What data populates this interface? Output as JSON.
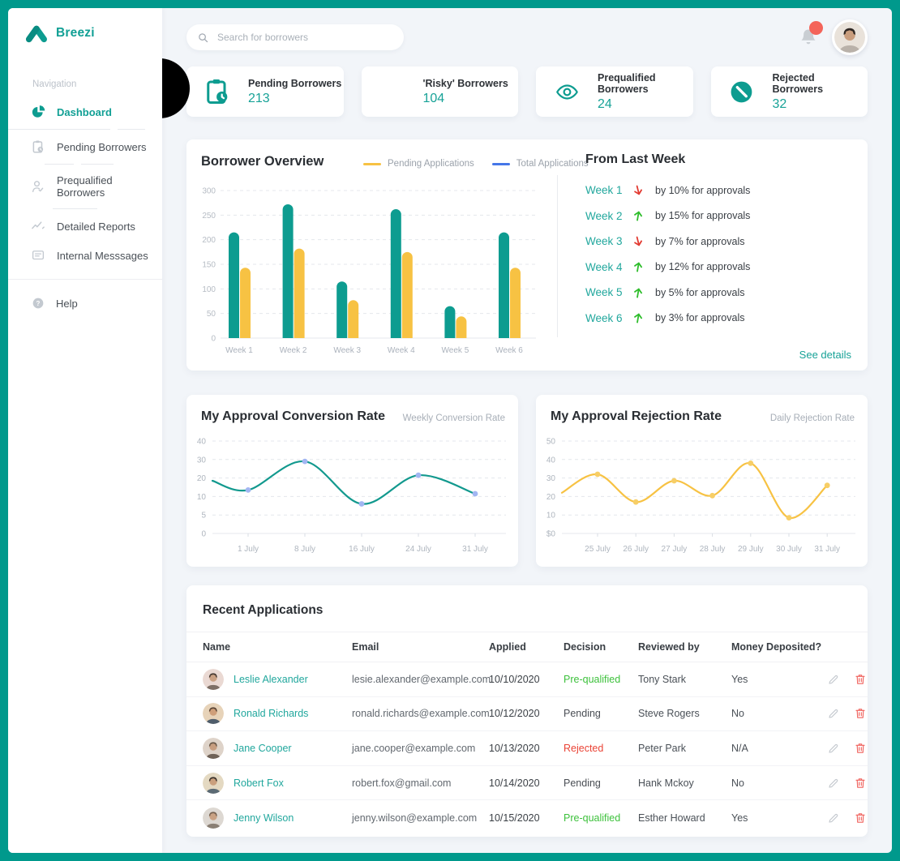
{
  "brand": {
    "name": "Breezi"
  },
  "sidebar": {
    "section_label": "Navigation",
    "items": [
      {
        "label": "Dashboard",
        "icon": "pie-chart-icon",
        "active": true
      },
      {
        "label": "Pending Borrowers",
        "icon": "clipboard-clock-icon",
        "active": false
      },
      {
        "label": "Prequalified Borrowers",
        "icon": "user-check-icon",
        "active": false
      },
      {
        "label": "Detailed Reports",
        "icon": "trend-line-icon",
        "active": false
      },
      {
        "label": "Internal Messsages",
        "icon": "message-icon",
        "active": false
      }
    ],
    "footer_items": [
      {
        "label": "Help",
        "icon": "help-icon",
        "active": false
      }
    ]
  },
  "topbar": {
    "search_placeholder": "Search for borrowers",
    "has_notification": true
  },
  "stats": [
    {
      "label": "Pending Borrowers",
      "value": "213",
      "icon": "clipboard-clock-icon"
    },
    {
      "label": "'Risky' Borrowers",
      "value": "104",
      "icon": ""
    },
    {
      "label": "Prequalified Borrowers",
      "value": "24",
      "icon": "eye-icon"
    },
    {
      "label": "Rejected Borrowers",
      "value": "32",
      "icon": "block-icon"
    }
  ],
  "overview": {
    "title": "Borrower Overview"
  },
  "from_last_week": {
    "title": "From Last Week",
    "rows": [
      {
        "week": "Week 1",
        "direction": "down",
        "text": "by 10% for approvals"
      },
      {
        "week": "Week 2",
        "direction": "up",
        "text": "by 15% for approvals"
      },
      {
        "week": "Week 3",
        "direction": "down",
        "text": "by 7% for approvals"
      },
      {
        "week": "Week 4",
        "direction": "up",
        "text": "by 12% for approvals"
      },
      {
        "week": "Week 5",
        "direction": "up",
        "text": "by 5% for approvals"
      },
      {
        "week": "Week 6",
        "direction": "up",
        "text": "by 3% for approvals"
      }
    ],
    "link_label": "See details"
  },
  "conversion_card": {
    "title": "My Approval Conversion Rate",
    "subtitle": "Weekly Conversion Rate"
  },
  "rejection_card": {
    "title": "My Approval Rejection Rate",
    "subtitle": "Daily Rejection Rate"
  },
  "chart_data": [
    {
      "id": "borrower-overview",
      "type": "bar",
      "title": "Borrower Overview",
      "categories": [
        "Week 1",
        "Week 2",
        "Week 3",
        "Week 4",
        "Week 5",
        "Week 6"
      ],
      "series": [
        {
          "name": "Total Applications",
          "color": "#0D9C90",
          "values": [
            215,
            272,
            115,
            262,
            65,
            215
          ]
        },
        {
          "name": "Pending Applications",
          "color": "#F7C243",
          "values": [
            143,
            182,
            77,
            175,
            44,
            143
          ]
        }
      ],
      "legend": [
        {
          "label": "Pending Applications",
          "color": "#F7C243"
        },
        {
          "label": "Total Applications",
          "color": "#4576E8"
        }
      ],
      "ylim": [
        0,
        300
      ],
      "yticks": [
        0,
        50,
        100,
        150,
        200,
        250,
        300
      ],
      "grid": "dashed-horizontal",
      "legend_position": "top-center"
    },
    {
      "id": "approval-conversion-rate",
      "type": "line",
      "title": "My Approval Conversion Rate",
      "subtitle": "Weekly Conversion Rate",
      "x": [
        "1 July",
        "8 July",
        "16 July",
        "24 July",
        "31 July"
      ],
      "values": [
        13.5,
        29,
        8,
        21.5,
        11.5
      ],
      "lead_value": 18.5,
      "ytick_labels": [
        "0",
        "5",
        "10",
        "20",
        "30",
        "40"
      ],
      "ytick_values": [
        0,
        5,
        10,
        20,
        30,
        40
      ],
      "color": "#12998E",
      "dot_color": "#A2B6F2",
      "grid": "dashed-horizontal"
    },
    {
      "id": "approval-rejection-rate",
      "type": "line",
      "title": "My Approval Rejection Rate",
      "subtitle": "Daily Rejection Rate",
      "x": [
        "25 July",
        "26 July",
        "27 July",
        "28 July",
        "29 July",
        "30 July",
        "31 July"
      ],
      "values": [
        32,
        17,
        28.5,
        20.5,
        38,
        8.5,
        26
      ],
      "lead_value": 22,
      "ytick_labels": [
        "$0",
        "10",
        "20",
        "30",
        "40",
        "50"
      ],
      "ytick_values": [
        0,
        10,
        20,
        30,
        40,
        50
      ],
      "color": "#F7C243",
      "dot_color": "#F7CE66",
      "grid": "dashed-horizontal"
    }
  ],
  "table": {
    "title": "Recent Applications",
    "columns": [
      "Name",
      "Email",
      "Applied",
      "Decision",
      "Reviewed by",
      "Money Deposited?"
    ],
    "rows": [
      {
        "name": "Leslie Alexander",
        "email": "lesie.alexander@example.com",
        "applied": "10/10/2020",
        "decision": "Pre-qualified",
        "decision_type": "prequalified",
        "reviewed_by": "Tony Stark",
        "money": "Yes"
      },
      {
        "name": "Ronald Richards",
        "email": "ronald.richards@example.com",
        "applied": "10/12/2020",
        "decision": "Pending",
        "decision_type": "pending",
        "reviewed_by": "Steve Rogers",
        "money": "No"
      },
      {
        "name": "Jane Cooper",
        "email": "jane.cooper@example.com",
        "applied": "10/13/2020",
        "decision": "Rejected",
        "decision_type": "rejected",
        "reviewed_by": "Peter Park",
        "money": "N/A"
      },
      {
        "name": "Robert Fox",
        "email": "robert.fox@gmail.com",
        "applied": "10/14/2020",
        "decision": "Pending",
        "decision_type": "pending",
        "reviewed_by": "Hank Mckoy",
        "money": "No"
      },
      {
        "name": "Jenny Wilson",
        "email": "jenny.wilson@example.com",
        "applied": "10/15/2020",
        "decision": "Pre-qualified",
        "decision_type": "prequalified",
        "reviewed_by": "Esther Howard",
        "money": "Yes"
      }
    ]
  },
  "colors": {
    "brand_teal": "#0D9C90",
    "accent_teal_text": "#17A297",
    "link_teal": "#21A79D",
    "yellow": "#F7C243",
    "legend_blue": "#4576E8",
    "positive_green": "#2EBD2B",
    "negative_red": "#E23B32",
    "prequalified_green": "#3DC13C",
    "rejected_red": "#EA4335",
    "pending_gray": "#4A4E54",
    "notification_red": "#F4645A",
    "frame": "#00998C",
    "background": "#F2F5F9"
  }
}
